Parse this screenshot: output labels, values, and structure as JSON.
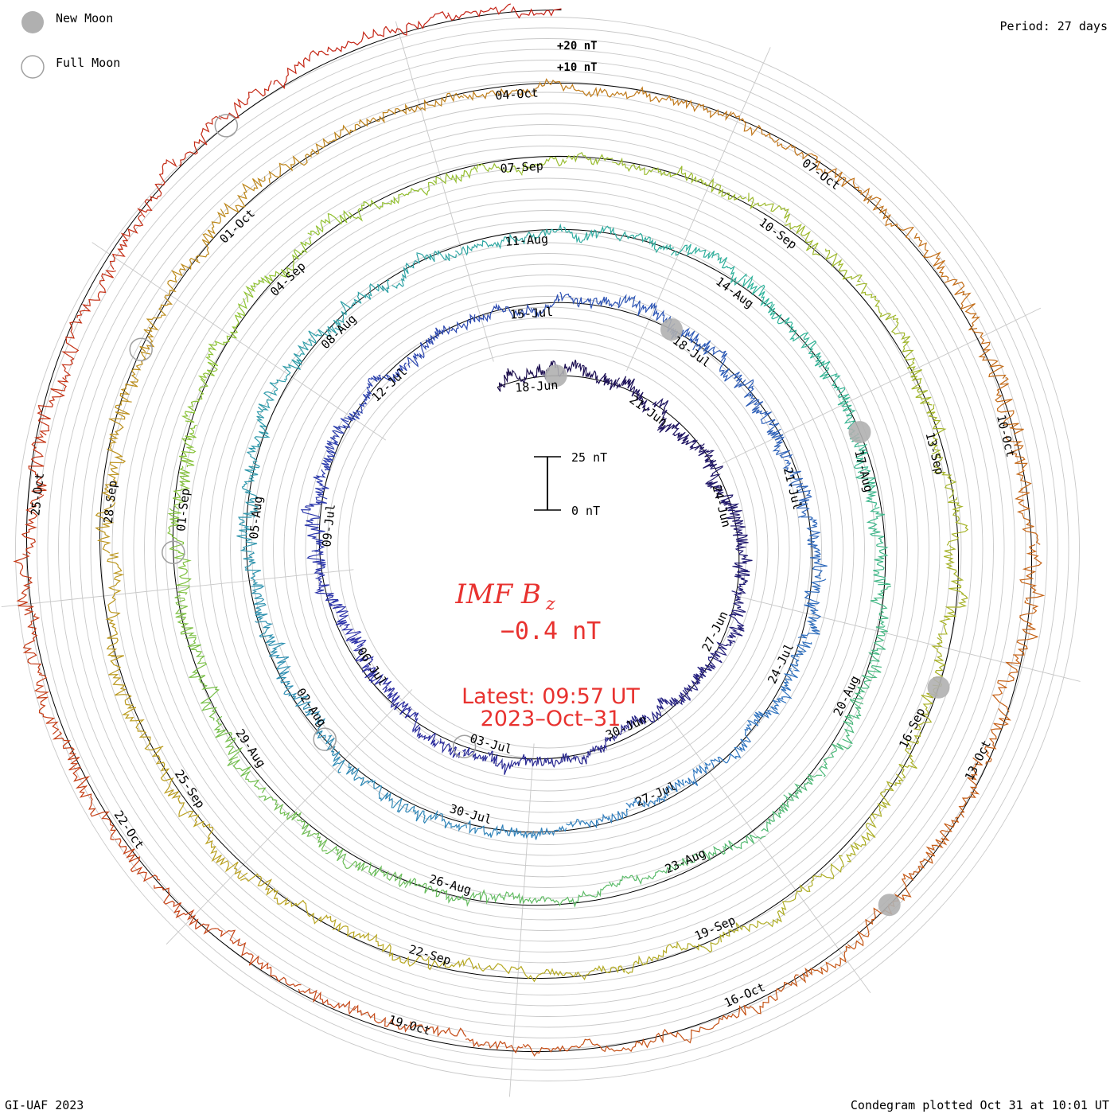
{
  "title": "IMF B",
  "title_subscript": "z",
  "current_value": "−0.4 nT",
  "latest_label": "Latest: 09:57 UT",
  "latest_date": "2023–Oct–31",
  "period_label": "Period: 27 days",
  "credit": "GI-UAF 2023",
  "plotted_label": "Condegram plotted Oct 31 at 10:01 UT",
  "legend": [
    {
      "label": "New Moon",
      "symbol": "filled-circle",
      "color": "#b0b0b0"
    },
    {
      "label": "Full Moon",
      "symbol": "hollow-circle",
      "color": "#a0a0a0"
    }
  ],
  "ring_scale_labels": [
    "+20 nT",
    "+10 nT"
  ],
  "scale_bar": {
    "top_label": "25 nT",
    "bottom_label": "0 nT"
  },
  "chart_data": {
    "type": "line",
    "description_type": "spiral condegram",
    "period_days": 27,
    "start_date": "2023-06-17",
    "end_date": "2023-10-31",
    "y_unit": "nT",
    "rotations": [
      {
        "index": 1,
        "color": "#1a0b4a",
        "date_labels": [
          "18-Jun",
          "21-Jun",
          "24-Jun",
          "27-Jun",
          "30-Jun"
        ]
      },
      {
        "index": 2,
        "color": "#2b2fa8",
        "date_labels": [
          "03-Jul",
          "06-Jul",
          "09-Jul",
          "12-Jul",
          "15-Jul",
          "18-Jul",
          "21-Jul",
          "24-Jul",
          "27-Jul"
        ]
      },
      {
        "index": 3,
        "color": "#2f78c0",
        "date_labels": [
          "30-Jul",
          "02-Aug",
          "05-Aug",
          "08-Aug",
          "11-Aug",
          "14-Aug",
          "17-Aug",
          "20-Aug",
          "23-Aug"
        ]
      },
      {
        "index": 4,
        "color": "#2fb49a",
        "date_labels": [
          "26-Aug",
          "29-Aug",
          "01-Sep",
          "04-Sep",
          "07-Sep",
          "10-Sep",
          "13-Sep",
          "16-Sep",
          "19-Sep"
        ]
      },
      {
        "index": 5,
        "color": "#8ec332",
        "date_labels": [
          "22-Sep",
          "25-Sep",
          "28-Sep",
          "01-Oct",
          "04-Oct",
          "07-Oct",
          "10-Oct",
          "13-Oct",
          "16-Oct"
        ]
      },
      {
        "index": 6,
        "color": "#c56015",
        "date_labels": [
          "19-Oct",
          "22-Oct",
          "25-Oct"
        ]
      }
    ],
    "color_ramp": [
      "#1a0b4a",
      "#2b2fa8",
      "#2f78c0",
      "#2fb49a",
      "#8ec332",
      "#b8a620",
      "#c56015",
      "#c41e14"
    ],
    "moon_markers": {
      "new_moon": [
        "2023-06-18",
        "2023-07-17",
        "2023-08-16",
        "2023-09-15",
        "2023-10-14"
      ],
      "full_moon": [
        "2023-07-03",
        "2023-08-01",
        "2023-08-31",
        "2023-09-29",
        "2023-10-28"
      ]
    },
    "grid": true
  }
}
